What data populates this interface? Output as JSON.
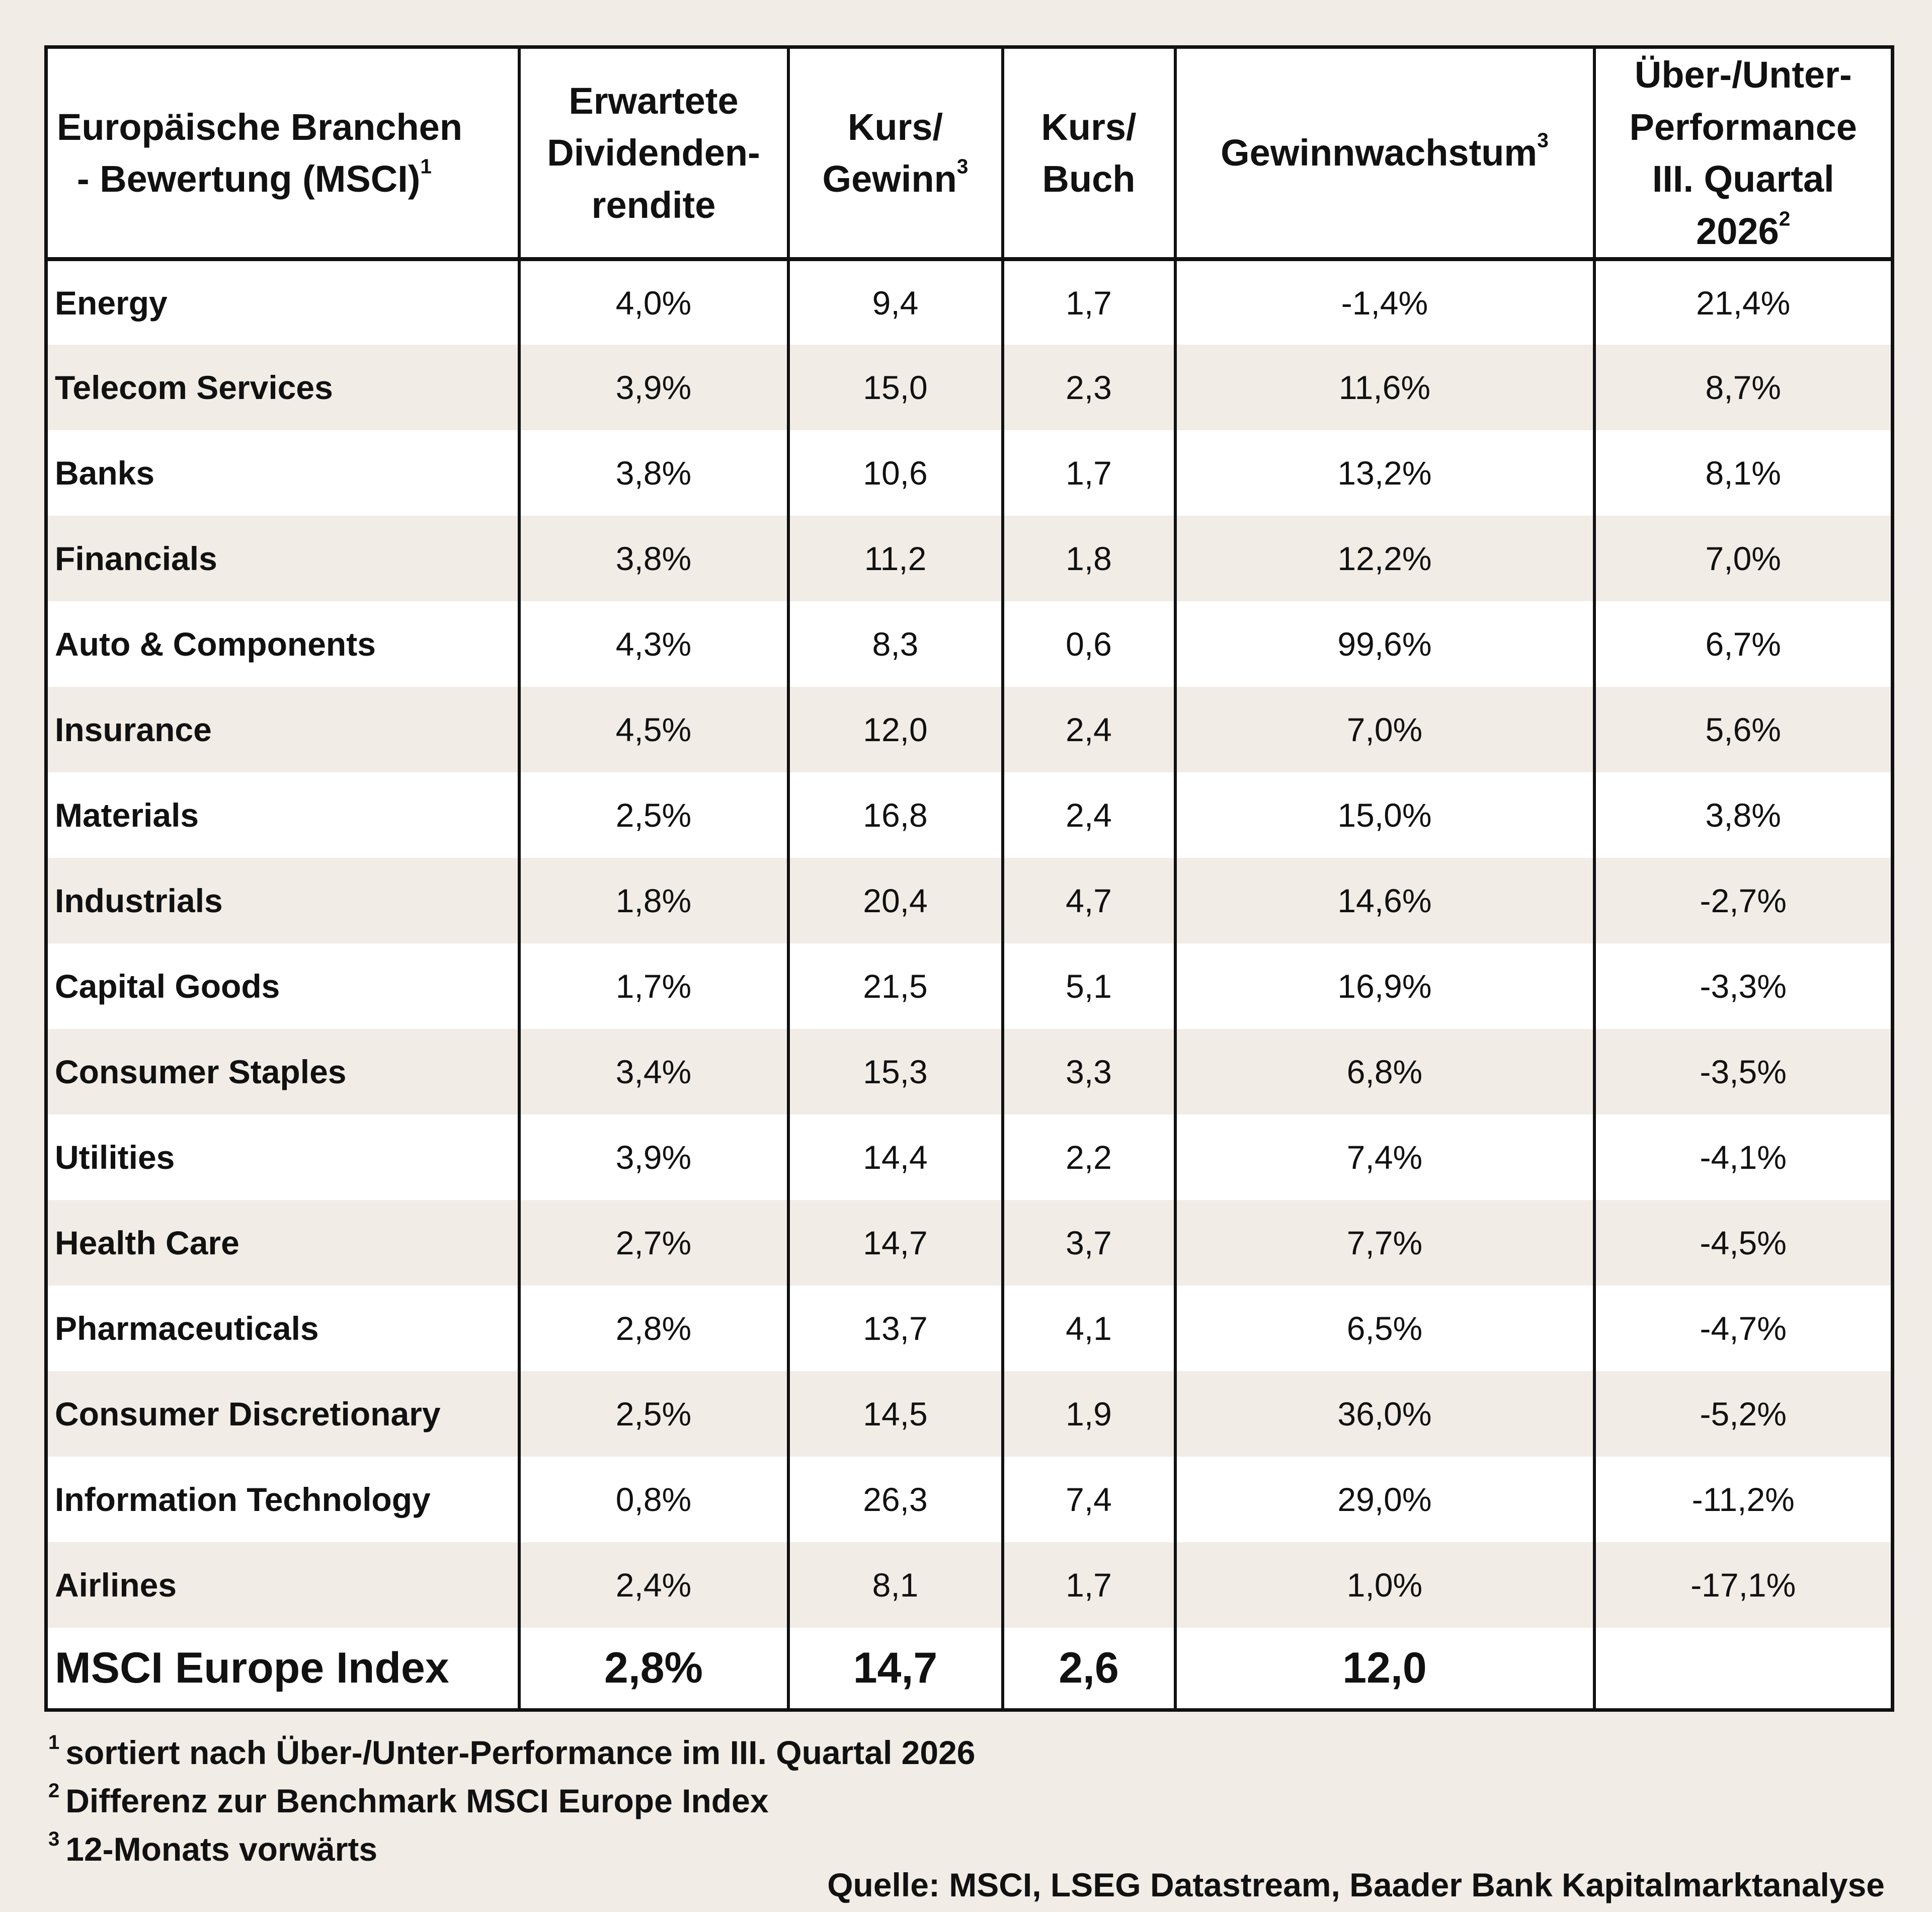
{
  "table": {
    "header": {
      "branch": {
        "line1": "Europäische Branchen",
        "line2": "- Bewertung (MSCI)",
        "sup": "1"
      },
      "dividend": {
        "line1": "Erwartete",
        "line2": "Dividenden-",
        "line3": "rendite"
      },
      "pe": {
        "line1": "Kurs/",
        "line2": "Gewinn",
        "sup": "3"
      },
      "pb": {
        "line1": "Kurs/",
        "line2": "Buch"
      },
      "growth": {
        "label": "Gewinnwachstum",
        "sup": "3"
      },
      "perf": {
        "line1": "Über-/Unter-",
        "line2": "Performance",
        "line3": "III. Quartal",
        "line4": "2026",
        "sup": "2"
      }
    },
    "rows": [
      {
        "name": "Energy",
        "dividend": "4,0%",
        "pe": "9,4",
        "pb": "1,7",
        "growth": "-1,4%",
        "perf": "21,4%"
      },
      {
        "name": "Telecom Services",
        "dividend": "3,9%",
        "pe": "15,0",
        "pb": "2,3",
        "growth": "11,6%",
        "perf": "8,7%"
      },
      {
        "name": "Banks",
        "dividend": "3,8%",
        "pe": "10,6",
        "pb": "1,7",
        "growth": "13,2%",
        "perf": "8,1%"
      },
      {
        "name": "Financials",
        "dividend": "3,8%",
        "pe": "11,2",
        "pb": "1,8",
        "growth": "12,2%",
        "perf": "7,0%"
      },
      {
        "name": "Auto & Components",
        "dividend": "4,3%",
        "pe": "8,3",
        "pb": "0,6",
        "growth": "99,6%",
        "perf": "6,7%"
      },
      {
        "name": "Insurance",
        "dividend": "4,5%",
        "pe": "12,0",
        "pb": "2,4",
        "growth": "7,0%",
        "perf": "5,6%"
      },
      {
        "name": "Materials",
        "dividend": "2,5%",
        "pe": "16,8",
        "pb": "2,4",
        "growth": "15,0%",
        "perf": "3,8%"
      },
      {
        "name": "Industrials",
        "dividend": "1,8%",
        "pe": "20,4",
        "pb": "4,7",
        "growth": "14,6%",
        "perf": "-2,7%"
      },
      {
        "name": "Capital Goods",
        "dividend": "1,7%",
        "pe": "21,5",
        "pb": "5,1",
        "growth": "16,9%",
        "perf": "-3,3%"
      },
      {
        "name": "Consumer Staples",
        "dividend": "3,4%",
        "pe": "15,3",
        "pb": "3,3",
        "growth": "6,8%",
        "perf": "-3,5%"
      },
      {
        "name": "Utilities",
        "dividend": "3,9%",
        "pe": "14,4",
        "pb": "2,2",
        "growth": "7,4%",
        "perf": "-4,1%"
      },
      {
        "name": "Health Care",
        "dividend": "2,7%",
        "pe": "14,7",
        "pb": "3,7",
        "growth": "7,7%",
        "perf": "-4,5%"
      },
      {
        "name": "Pharmaceuticals",
        "dividend": "2,8%",
        "pe": "13,7",
        "pb": "4,1",
        "growth": "6,5%",
        "perf": "-4,7%"
      },
      {
        "name": "Consumer Discretionary",
        "dividend": "2,5%",
        "pe": "14,5",
        "pb": "1,9",
        "growth": "36,0%",
        "perf": "-5,2%"
      },
      {
        "name": "Information Technology",
        "dividend": "0,8%",
        "pe": "26,3",
        "pb": "7,4",
        "growth": "29,0%",
        "perf": "-11,2%"
      },
      {
        "name": "Airlines",
        "dividend": "2,4%",
        "pe": "8,1",
        "pb": "1,7",
        "growth": "1,0%",
        "perf": "-17,1%"
      }
    ],
    "total": {
      "name": "MSCI Europe Index",
      "dividend": "2,8%",
      "pe": "14,7",
      "pb": "2,6",
      "growth": "12,0",
      "perf": ""
    }
  },
  "footnotes": [
    {
      "mark": "1",
      "text": "sortiert nach Über-/Unter-Performance im III. Quartal 2026"
    },
    {
      "mark": "2",
      "text": "Differenz zur Benchmark MSCI Europe Index"
    },
    {
      "mark": "3",
      "text": "12-Monats vorwärts"
    }
  ],
  "source": "Quelle: MSCI, LSEG Datastream, Baader Bank Kapitalmarktanalyse",
  "colors": {
    "background": "#f1ece6",
    "row_alt": "#ffffff",
    "border": "#111111"
  }
}
